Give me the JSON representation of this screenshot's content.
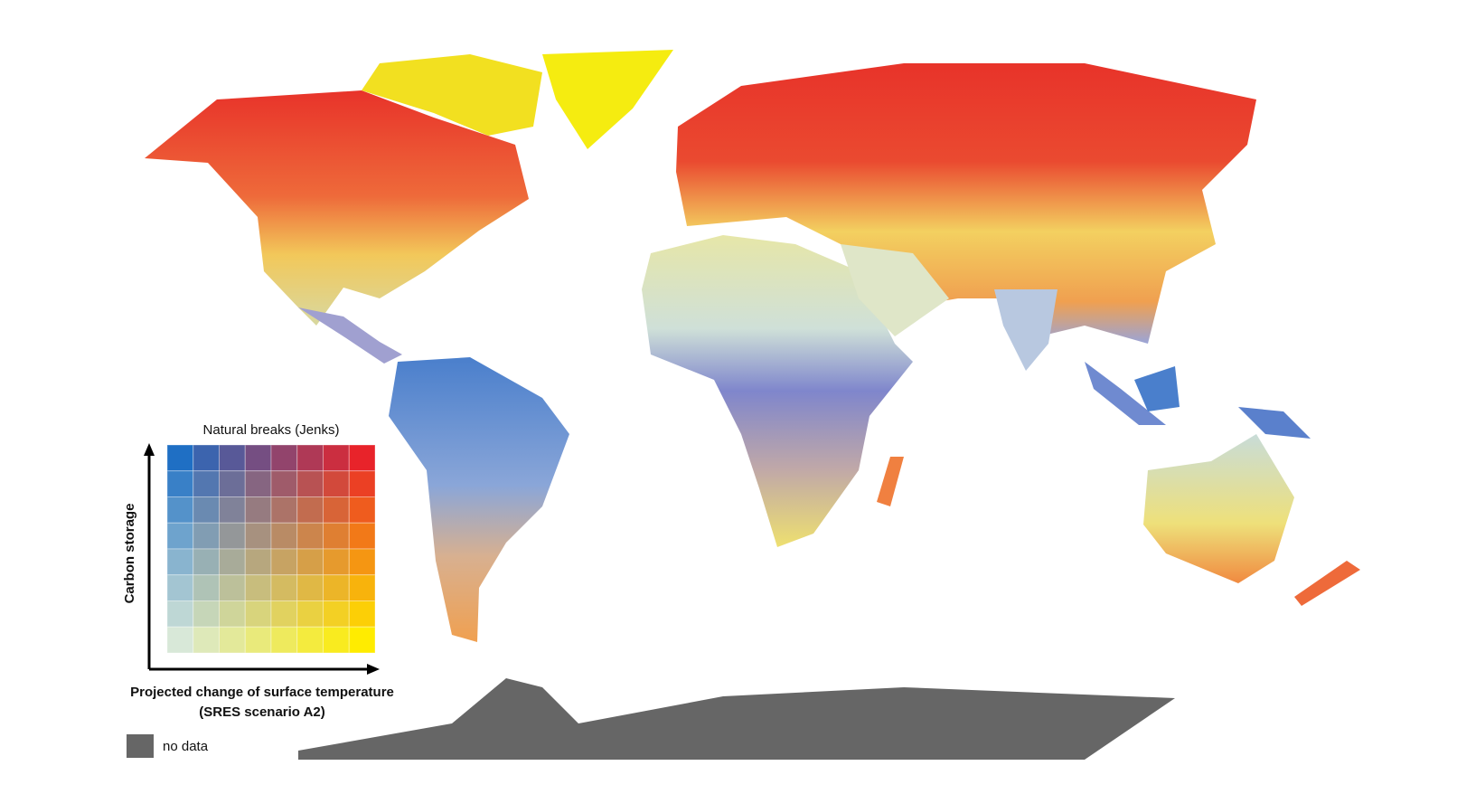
{
  "legend": {
    "title": "Natural breaks (Jenks)",
    "y_label": "Carbon storage",
    "x_label": [
      "Projected change of surface temperature",
      "(SRES scenario A2)"
    ],
    "no_data": "no data"
  }
}
